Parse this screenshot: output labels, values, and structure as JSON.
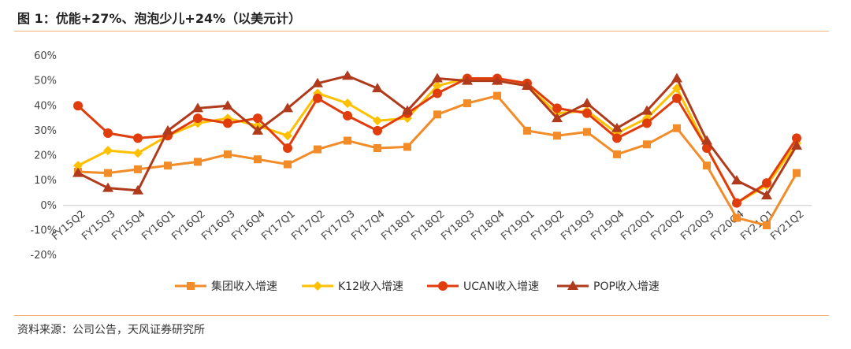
{
  "header": {
    "title": "图 1：优能+27%、泡泡少儿+24%（以美元计）"
  },
  "footer": {
    "source": "资料来源：公司公告，天风证券研究所"
  },
  "chart_data": {
    "type": "line",
    "title": "",
    "xlabel": "",
    "ylabel": "",
    "ylim": [
      -20,
      60
    ],
    "yticks": [
      -20,
      -10,
      0,
      10,
      20,
      30,
      40,
      50,
      60
    ],
    "ytick_format": "percent",
    "categories": [
      "FY15Q2",
      "FY15Q3",
      "FY15Q4",
      "FY16Q1",
      "FY16Q2",
      "FY16Q3",
      "FY16Q4",
      "FY17Q1",
      "FY17Q2",
      "FY17Q3",
      "FY17Q4",
      "FY18Q1",
      "FY18Q2",
      "FY18Q3",
      "FY18Q4",
      "FY19Q1",
      "FY19Q2",
      "FY19Q3",
      "FY19Q4",
      "FY20Q1",
      "FY20Q2",
      "FY20Q3",
      "FY20Q4",
      "FY21Q1",
      "FY21Q2"
    ],
    "legend_position": "bottom",
    "grid": false,
    "series": [
      {
        "name": "集团收入增速",
        "color": "#f28c28",
        "marker": "square",
        "values": [
          13.5,
          13,
          14.5,
          16,
          17.5,
          20.5,
          18.5,
          16.5,
          22.5,
          26,
          23,
          23.5,
          36.5,
          41,
          44,
          30,
          28,
          29.5,
          20.5,
          24.5,
          31,
          16,
          -5,
          -8,
          13
        ]
      },
      {
        "name": "K12收入增速",
        "color": "#ffc000",
        "marker": "diamond",
        "values": [
          16,
          22,
          21,
          28,
          33,
          35,
          32,
          28,
          45,
          41,
          34,
          35,
          48,
          51,
          50,
          48,
          37,
          38,
          29,
          35,
          47,
          23,
          1,
          8,
          25
        ]
      },
      {
        "name": "UCAN收入增速",
        "color": "#e03c0c",
        "marker": "circle",
        "values": [
          40,
          29,
          27,
          28,
          35,
          33,
          35,
          23,
          43,
          36,
          30,
          37,
          45,
          51,
          51,
          49,
          39,
          37,
          27,
          33,
          43,
          23,
          1,
          9,
          27
        ]
      },
      {
        "name": "POP收入增速",
        "color": "#b03a1c",
        "marker": "triangle",
        "values": [
          13,
          7,
          6,
          30,
          39,
          40,
          30,
          39,
          49,
          52,
          47,
          38,
          51,
          50,
          50,
          48,
          35,
          41,
          31,
          38,
          51,
          26,
          10,
          4,
          24
        ]
      }
    ]
  }
}
